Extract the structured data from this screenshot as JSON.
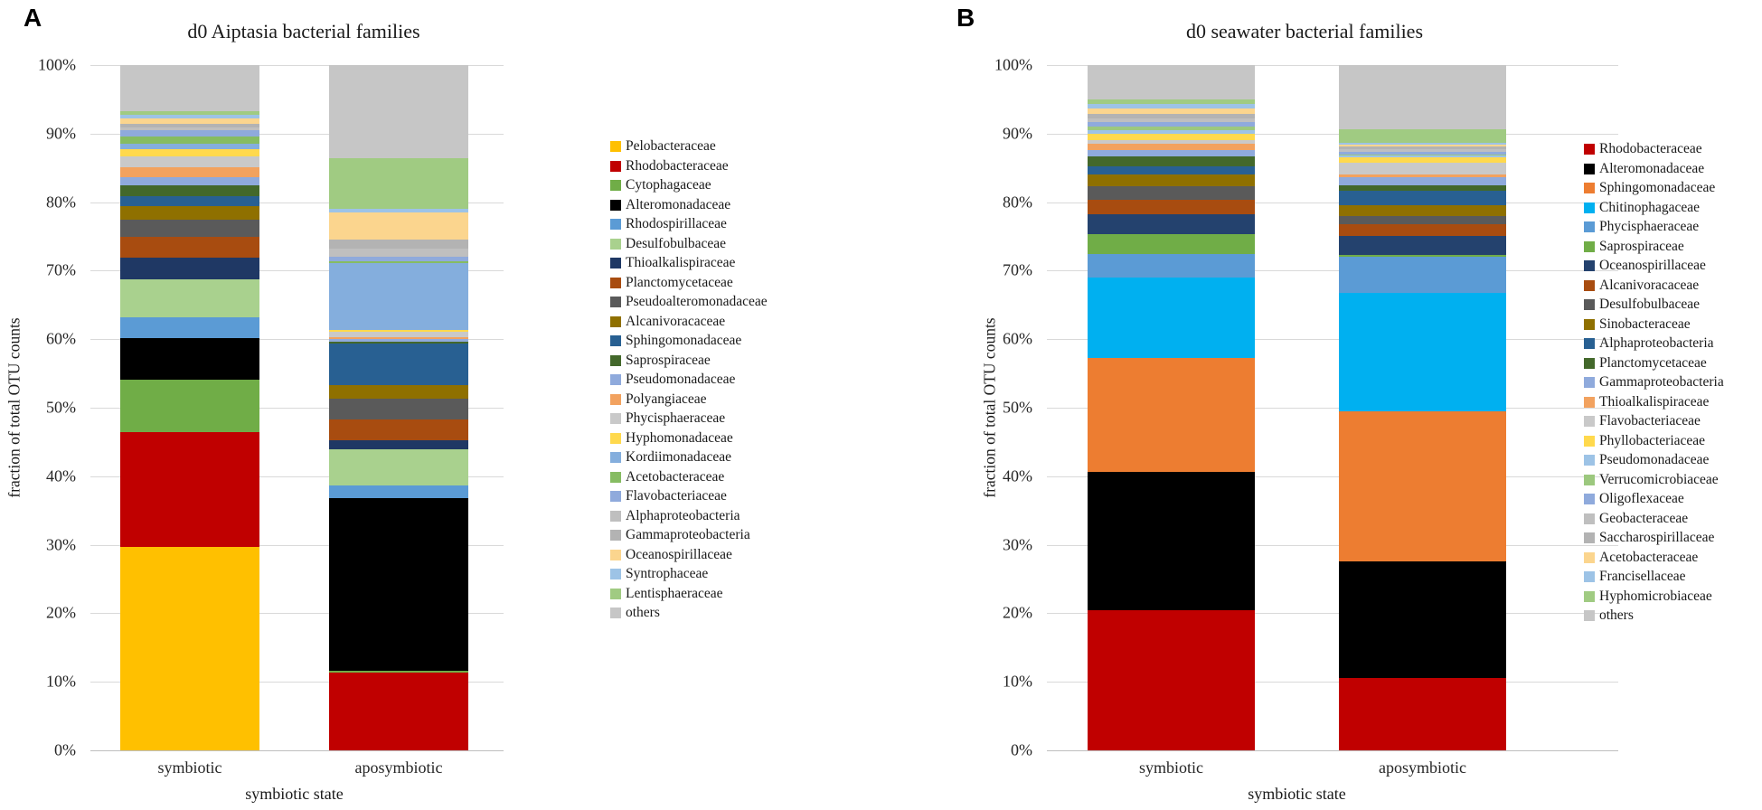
{
  "figure": {
    "background": "#FFFFFF",
    "panels": [
      {
        "label": "A"
      },
      {
        "label": "B"
      }
    ]
  },
  "chart_data": [
    {
      "type": "bar",
      "stacked": true,
      "panel_label": "A",
      "title": "d0 Aiptasia bacterial families",
      "xlabel": "symbiotic state",
      "ylabel": "fraction of total OTU counts",
      "categories": [
        "symbiotic",
        "aposymbiotic"
      ],
      "y_ticks": [
        "0%",
        "10%",
        "20%",
        "30%",
        "40%",
        "50%",
        "60%",
        "70%",
        "80%",
        "90%",
        "100%"
      ],
      "ylim": [
        0,
        100
      ],
      "grid": true,
      "legend_position": "right",
      "series": [
        {
          "name": "Pelobacteraceae",
          "color": "#FFC000",
          "values": [
            29.7,
            0
          ]
        },
        {
          "name": "Rhodobacteraceae",
          "color": "#C00000",
          "values": [
            16.8,
            11.3
          ]
        },
        {
          "name": "Cytophagaceae",
          "color": "#70AD47",
          "values": [
            7.6,
            0.3
          ]
        },
        {
          "name": "Alteromonadaceae",
          "color": "#000000",
          "values": [
            6.1,
            25.2
          ]
        },
        {
          "name": "Rhodospirillaceae",
          "color": "#5B9BD5",
          "values": [
            3.0,
            1.8
          ]
        },
        {
          "name": "Desulfobulbaceae",
          "color": "#A9D18E",
          "values": [
            5.5,
            5.4
          ]
        },
        {
          "name": "Thioalkalispiraceae",
          "color": "#1F3864",
          "values": [
            3.2,
            1.2
          ]
        },
        {
          "name": "Planctomycetaceae",
          "color": "#A84C10",
          "values": [
            3.0,
            3.1
          ]
        },
        {
          "name": "Pseudoalteromonadaceae",
          "color": "#5A5A5A",
          "values": [
            2.5,
            3.0
          ]
        },
        {
          "name": "Alcanivoracaceae",
          "color": "#8F7000",
          "values": [
            2.0,
            2.0
          ]
        },
        {
          "name": "Sphingomonadaceae",
          "color": "#286092",
          "values": [
            1.5,
            6.1
          ]
        },
        {
          "name": "Saprospiraceae",
          "color": "#43682B",
          "values": [
            1.5,
            0.3
          ]
        },
        {
          "name": "Pseudomonadaceae",
          "color": "#8FAADC",
          "values": [
            1.3,
            0.3
          ]
        },
        {
          "name": "Polyangiaceae",
          "color": "#F2A25F",
          "values": [
            1.4,
            0.3
          ]
        },
        {
          "name": "Phycisphaeraceae",
          "color": "#C9C9C9",
          "values": [
            1.6,
            0.8
          ]
        },
        {
          "name": "Hyphomonadaceae",
          "color": "#FFD94D",
          "values": [
            1.0,
            0.3
          ]
        },
        {
          "name": "Kordiimonadaceae",
          "color": "#84AEDD",
          "values": [
            0.9,
            9.7
          ]
        },
        {
          "name": "Acetobacteraceae",
          "color": "#86BC62",
          "values": [
            1.0,
            0.3
          ]
        },
        {
          "name": "Flavobacteriaceae",
          "color": "#8FAADC",
          "values": [
            0.9,
            0.6
          ]
        },
        {
          "name": "Alphaproteobacteria",
          "color": "#BFBFBF",
          "values": [
            0.45,
            1.3
          ]
        },
        {
          "name": "Gammaproteobacteria",
          "color": "#B3B3B3",
          "values": [
            0.45,
            1.3
          ]
        },
        {
          "name": "Oceanospirillaceae",
          "color": "#FBD58E",
          "values": [
            0.9,
            3.9
          ]
        },
        {
          "name": "Syntrophaceae",
          "color": "#9DC3E6",
          "values": [
            0.5,
            0.5
          ]
        },
        {
          "name": "Lentisphaeraceae",
          "color": "#A0CB82",
          "values": [
            0.5,
            7.4
          ]
        },
        {
          "name": "others",
          "color": "#C6C6C6",
          "values": [
            6.7,
            13.6
          ]
        }
      ]
    },
    {
      "type": "bar",
      "stacked": true,
      "panel_label": "B",
      "title": "d0 seawater bacterial families",
      "xlabel": "symbiotic state",
      "ylabel": "fraction of total OTU counts",
      "categories": [
        "symbiotic",
        "aposymbiotic"
      ],
      "y_ticks": [
        "0%",
        "10%",
        "20%",
        "30%",
        "40%",
        "50%",
        "60%",
        "70%",
        "80%",
        "90%",
        "100%"
      ],
      "ylim": [
        0,
        100
      ],
      "grid": true,
      "legend_position": "right",
      "series": [
        {
          "name": "Rhodobacteraceae",
          "color": "#C00000",
          "values": [
            20.5,
            10.5
          ]
        },
        {
          "name": "Alteromonadaceae",
          "color": "#000000",
          "values": [
            20.2,
            17.1
          ]
        },
        {
          "name": "Sphingomonadaceae",
          "color": "#ED7D31",
          "values": [
            16.5,
            21.9
          ]
        },
        {
          "name": "Chitinophagaceae",
          "color": "#00B0F0",
          "values": [
            11.8,
            17.2
          ]
        },
        {
          "name": "Phycisphaeraceae",
          "color": "#5B9BD5",
          "values": [
            3.5,
            5.4
          ]
        },
        {
          "name": "Saprospiraceae",
          "color": "#70AD47",
          "values": [
            2.9,
            0.2
          ]
        },
        {
          "name": "Oceanospirillaceae",
          "color": "#24426E",
          "values": [
            2.9,
            2.8
          ]
        },
        {
          "name": "Alcanivoracaceae",
          "color": "#A84C10",
          "values": [
            2.0,
            1.7
          ]
        },
        {
          "name": "Desulfobulbaceae",
          "color": "#5A5A5A",
          "values": [
            2.1,
            1.2
          ]
        },
        {
          "name": "Sinobacteraceae",
          "color": "#8F7000",
          "values": [
            1.7,
            1.5
          ]
        },
        {
          "name": "Alphaproteobacteria",
          "color": "#286092",
          "values": [
            1.1,
            2.2
          ]
        },
        {
          "name": "Planctomycetaceae",
          "color": "#43682B",
          "values": [
            1.5,
            0.8
          ]
        },
        {
          "name": "Gammaproteobacteria",
          "color": "#8FAADC",
          "values": [
            0.9,
            1.2
          ]
        },
        {
          "name": "Thioalkalispiraceae",
          "color": "#F2A25F",
          "values": [
            0.9,
            0.3
          ]
        },
        {
          "name": "Flavobacteriaceae",
          "color": "#C9C9C9",
          "values": [
            0.6,
            1.8
          ]
        },
        {
          "name": "Phyllobacteriaceae",
          "color": "#FFD94D",
          "values": [
            0.9,
            0.8
          ]
        },
        {
          "name": "Pseudomonadaceae",
          "color": "#9DC3E6",
          "values": [
            0.5,
            0.2
          ]
        },
        {
          "name": "Verrucomicrobiaceae",
          "color": "#9CC87E",
          "values": [
            0.6,
            0.2
          ]
        },
        {
          "name": "Oligoflexaceae",
          "color": "#8FAADC",
          "values": [
            0.6,
            0.3
          ]
        },
        {
          "name": "Geobacteraceae",
          "color": "#BFBFBF",
          "values": [
            0.6,
            0.4
          ]
        },
        {
          "name": "Saccharospirillaceae",
          "color": "#B3B3B3",
          "values": [
            0.6,
            0.4
          ]
        },
        {
          "name": "Acetobacteraceae",
          "color": "#FBD58E",
          "values": [
            0.8,
            0.3
          ]
        },
        {
          "name": "Francisellaceae",
          "color": "#9DC3E6",
          "values": [
            0.6,
            0.3
          ]
        },
        {
          "name": "Hyphomicrobiaceae",
          "color": "#A0CB82",
          "values": [
            0.7,
            2.0
          ]
        },
        {
          "name": "others",
          "color": "#C6C6C6",
          "values": [
            5.0,
            9.3
          ]
        }
      ]
    }
  ]
}
